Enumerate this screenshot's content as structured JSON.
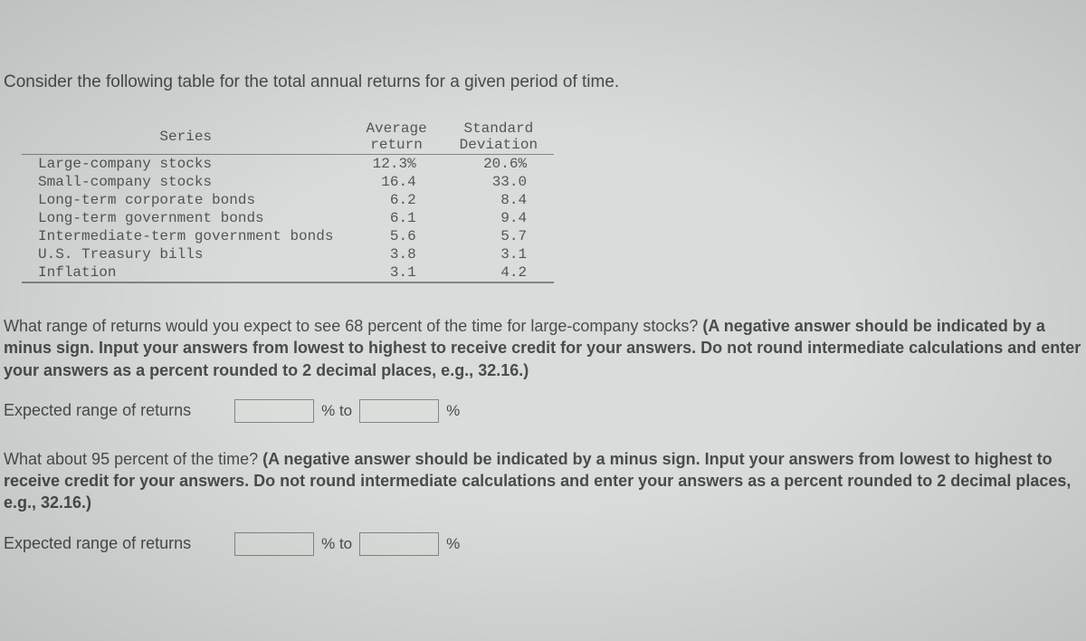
{
  "intro": "Consider the following table for the total annual returns for a given period of time.",
  "table": {
    "headers": {
      "series": "Series",
      "avg": "Average return",
      "std": "Standard Deviation"
    },
    "rows": [
      {
        "series": "Large-company stocks",
        "avg": "12.3%",
        "std": "20.6%"
      },
      {
        "series": "Small-company stocks",
        "avg": "16.4",
        "std": "33.0"
      },
      {
        "series": "Long-term corporate bonds",
        "avg": "6.2",
        "std": "8.4"
      },
      {
        "series": "Long-term government bonds",
        "avg": "6.1",
        "std": "9.4"
      },
      {
        "series": "Intermediate-term government bonds",
        "avg": "5.6",
        "std": "5.7"
      },
      {
        "series": "U.S. Treasury bills",
        "avg": "3.8",
        "std": "3.1"
      },
      {
        "series": "Inflation",
        "avg": "3.1",
        "std": "4.2"
      }
    ]
  },
  "q1": {
    "lead": "What range of returns would you expect to see 68 percent of the time for large-company stocks? ",
    "hint": "(A negative answer should be indicated by a minus sign. Input your answers from lowest to highest to receive credit for your answers. Do not round intermediate calculations and enter your answers as a percent rounded to 2 decimal places, e.g., 32.16.)",
    "label": "Expected range of returns",
    "to": "% to",
    "pct": "%"
  },
  "q2": {
    "lead": "What about 95 percent of the time? ",
    "hint": "(A negative answer should be indicated by a minus sign. Input your answers from lowest to highest to receive credit for your answers. Do not round intermediate calculations and enter your answers as a percent rounded to 2 decimal places, e.g., 32.16.)",
    "label": "Expected range of returns",
    "to": "% to",
    "pct": "%"
  },
  "colors": {
    "background": "#d8dcda",
    "text": "#4a4a4a",
    "table_border": "#888888"
  }
}
